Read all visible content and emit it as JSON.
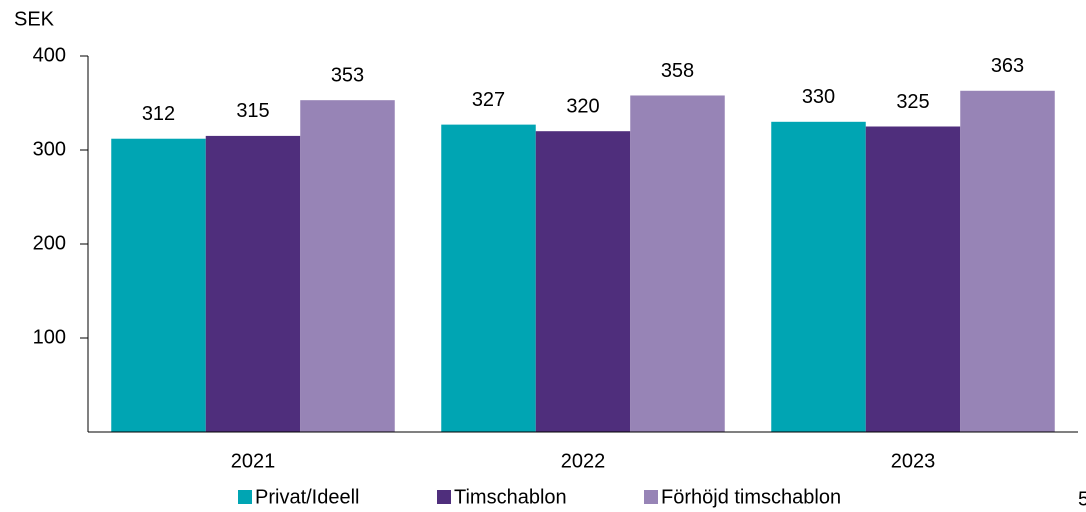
{
  "chart_data": {
    "type": "bar",
    "y_label": "SEK",
    "categories": [
      "2021",
      "2022",
      "2023"
    ],
    "series": [
      {
        "name": "Privat/Ideell",
        "color": "#00a5b3",
        "values": [
          312,
          327,
          330
        ]
      },
      {
        "name": "Timschablon",
        "color": "#4f2e7c",
        "values": [
          315,
          320,
          325
        ]
      },
      {
        "name": "Förhöjd timschablon",
        "color": "#9784b6",
        "values": [
          353,
          358,
          363
        ]
      }
    ],
    "ylim": [
      0,
      400
    ],
    "yticks": [
      100,
      200,
      300,
      400
    ],
    "legend": "bottom"
  },
  "page_number": "5"
}
